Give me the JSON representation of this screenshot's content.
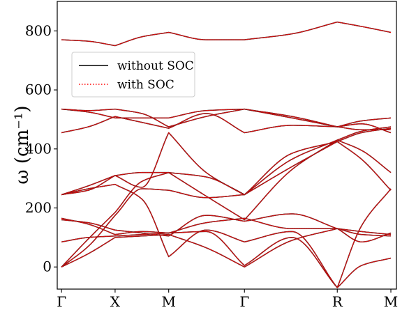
{
  "chart_data": {
    "type": "line",
    "title": "",
    "xlabel": "",
    "ylabel": "ω (cm⁻¹)",
    "ylim": [
      -75,
      900
    ],
    "yticks": [
      0,
      200,
      400,
      600,
      800
    ],
    "x_points": [
      {
        "label": "Γ",
        "x": 0
      },
      {
        "label": "X",
        "x": 1
      },
      {
        "label": "M",
        "x": 2
      },
      {
        "label": "Γ",
        "x": 3.414
      },
      {
        "label": "R",
        "x": 5.146
      },
      {
        "label": "M",
        "x": 6.146
      }
    ],
    "xlim": [
      -0.08,
      6.25
    ],
    "legend": {
      "position": "upper-left",
      "entries": [
        {
          "label": "without SOC",
          "style": "solid",
          "color": "#000000"
        },
        {
          "label": "with SOC",
          "style": "dotted",
          "color": "#ff0000"
        }
      ]
    },
    "overlay_color": "#b31a1a",
    "series": [
      {
        "name": "without SOC",
        "color": "#000000",
        "dash": "solid"
      },
      {
        "name": "with SOC",
        "color": "#ff0000",
        "dash": "dotted"
      }
    ],
    "bands": [
      [
        [
          0,
          0
        ],
        [
          0.5,
          95
        ],
        [
          1,
          185
        ],
        [
          1.5,
          290
        ],
        [
          2,
          320
        ],
        [
          2.7,
          240
        ],
        [
          3.414,
          160
        ],
        [
          4.3,
          330
        ],
        [
          5.146,
          430
        ],
        [
          5.6,
          395
        ],
        [
          6.146,
          320
        ]
      ],
      [
        [
          0,
          0
        ],
        [
          0.5,
          70
        ],
        [
          1,
          175
        ],
        [
          1.5,
          265
        ],
        [
          2,
          260
        ],
        [
          2.7,
          235
        ],
        [
          3.414,
          245
        ],
        [
          4.3,
          340
        ],
        [
          5.146,
          425
        ],
        [
          5.6,
          365
        ],
        [
          6.146,
          260
        ]
      ],
      [
        [
          0,
          0
        ],
        [
          0.5,
          45
        ],
        [
          1,
          100
        ],
        [
          1.5,
          105
        ],
        [
          2,
          110
        ],
        [
          2.7,
          65
        ],
        [
          3.414,
          0
        ],
        [
          4.3,
          90
        ],
        [
          5.146,
          130
        ],
        [
          5.6,
          85
        ],
        [
          6.146,
          115
        ]
      ],
      [
        [
          0,
          85
        ],
        [
          0.5,
          100
        ],
        [
          1,
          105
        ],
        [
          1.5,
          110
        ],
        [
          2,
          115
        ],
        [
          2.7,
          120
        ],
        [
          3.414,
          5
        ],
        [
          4.3,
          100
        ],
        [
          5.146,
          -70
        ],
        [
          5.6,
          5
        ],
        [
          6.146,
          30
        ]
      ],
      [
        [
          0,
          160
        ],
        [
          0.5,
          150
        ],
        [
          1,
          125
        ],
        [
          1.5,
          115
        ],
        [
          2,
          105
        ],
        [
          2.7,
          175
        ],
        [
          3.414,
          155
        ],
        [
          4.3,
          180
        ],
        [
          5.146,
          130
        ],
        [
          5.6,
          120
        ],
        [
          6.146,
          110
        ]
      ],
      [
        [
          0,
          165
        ],
        [
          0.5,
          145
        ],
        [
          1,
          110
        ],
        [
          1.5,
          120
        ],
        [
          2,
          115
        ],
        [
          2.7,
          150
        ],
        [
          3.414,
          165
        ],
        [
          4.3,
          130
        ],
        [
          5.146,
          130
        ],
        [
          5.6,
          110
        ],
        [
          6.146,
          105
        ]
      ],
      [
        [
          0,
          245
        ],
        [
          0.5,
          265
        ],
        [
          1,
          280
        ],
        [
          1.5,
          230
        ],
        [
          2,
          35
        ],
        [
          2.7,
          125
        ],
        [
          3.414,
          85
        ],
        [
          4.3,
          120
        ],
        [
          5.146,
          -70
        ],
        [
          5.6,
          140
        ],
        [
          6.146,
          265
        ]
      ],
      [
        [
          0,
          245
        ],
        [
          0.5,
          260
        ],
        [
          1,
          310
        ],
        [
          1.5,
          270
        ],
        [
          2,
          455
        ],
        [
          2.7,
          320
        ],
        [
          3.414,
          245
        ],
        [
          4.3,
          385
        ],
        [
          5.146,
          425
        ],
        [
          5.6,
          455
        ],
        [
          6.146,
          470
        ]
      ],
      [
        [
          0,
          245
        ],
        [
          0.5,
          275
        ],
        [
          1,
          310
        ],
        [
          1.5,
          320
        ],
        [
          2,
          320
        ],
        [
          2.7,
          305
        ],
        [
          3.414,
          245
        ],
        [
          4.3,
          365
        ],
        [
          5.146,
          430
        ],
        [
          5.6,
          460
        ],
        [
          6.146,
          475
        ]
      ],
      [
        [
          0,
          455
        ],
        [
          0.5,
          475
        ],
        [
          1,
          510
        ],
        [
          1.5,
          490
        ],
        [
          2,
          470
        ],
        [
          2.7,
          520
        ],
        [
          3.414,
          455
        ],
        [
          4.3,
          480
        ],
        [
          5.146,
          475
        ],
        [
          5.6,
          465
        ],
        [
          6.146,
          465
        ]
      ],
      [
        [
          0,
          535
        ],
        [
          0.5,
          525
        ],
        [
          1,
          505
        ],
        [
          1.5,
          505
        ],
        [
          2,
          505
        ],
        [
          2.7,
          530
        ],
        [
          3.414,
          535
        ],
        [
          4.3,
          505
        ],
        [
          5.146,
          475
        ],
        [
          5.6,
          495
        ],
        [
          6.146,
          505
        ]
      ],
      [
        [
          0,
          535
        ],
        [
          0.5,
          530
        ],
        [
          1,
          535
        ],
        [
          1.5,
          520
        ],
        [
          2,
          475
        ],
        [
          2.7,
          510
        ],
        [
          3.414,
          535
        ],
        [
          4.3,
          510
        ],
        [
          5.146,
          475
        ],
        [
          5.6,
          485
        ],
        [
          6.146,
          455
        ]
      ],
      [
        [
          0,
          770
        ],
        [
          0.5,
          765
        ],
        [
          1,
          750
        ],
        [
          1.5,
          780
        ],
        [
          2,
          795
        ],
        [
          2.7,
          770
        ],
        [
          3.414,
          770
        ],
        [
          4.3,
          790
        ],
        [
          5.146,
          830
        ],
        [
          5.6,
          815
        ],
        [
          6.146,
          795
        ]
      ]
    ]
  }
}
